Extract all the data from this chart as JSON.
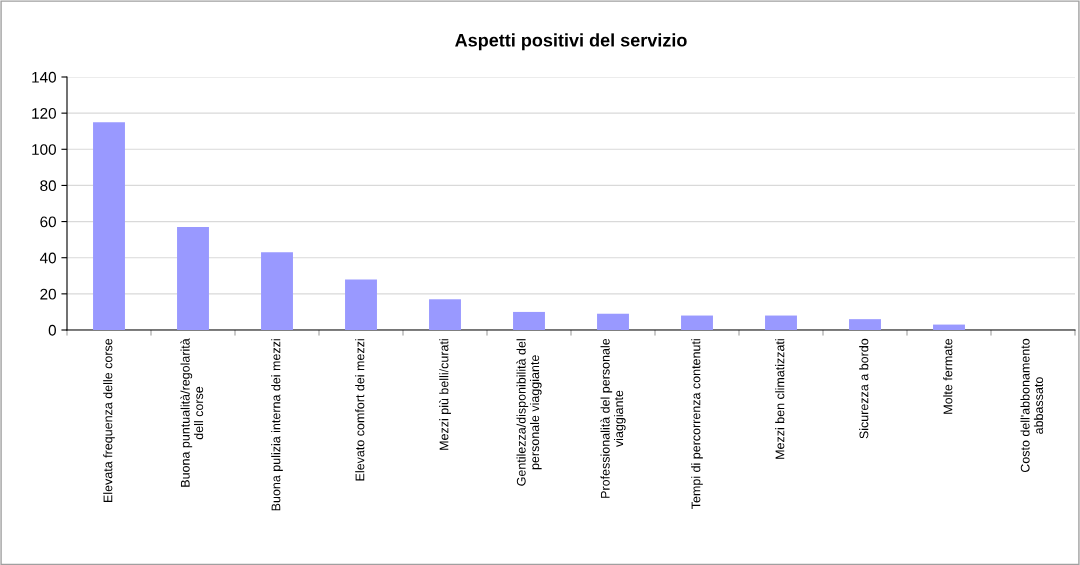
{
  "chart_data": {
    "type": "bar",
    "title": "Aspetti positivi del servizio",
    "categories": [
      "Elevata frequenza delle corse",
      "Buona puntualità/regolarità dell corse",
      "Buona pulizia interna dei mezzi",
      "Elevato comfort dei mezzi",
      "Mezzi più belli/curati",
      "Gentilezza/disponibilità del personale viaggiante",
      "Professionalità del personale viaggiante",
      "Tempi di percorrenza contenuti",
      "Mezzi ben climatizzati",
      "Sicurezza a bordo",
      "Molte fermate",
      "Costo dell'abbonamento abbassato"
    ],
    "values": [
      115,
      57,
      43,
      28,
      17,
      10,
      9,
      8,
      8,
      6,
      3,
      0
    ],
    "color": "#9999ff",
    "ylim": [
      0,
      140
    ],
    "yticks": [
      0,
      20,
      40,
      60,
      80,
      100,
      120,
      140
    ],
    "grid": "y",
    "legend": false
  }
}
